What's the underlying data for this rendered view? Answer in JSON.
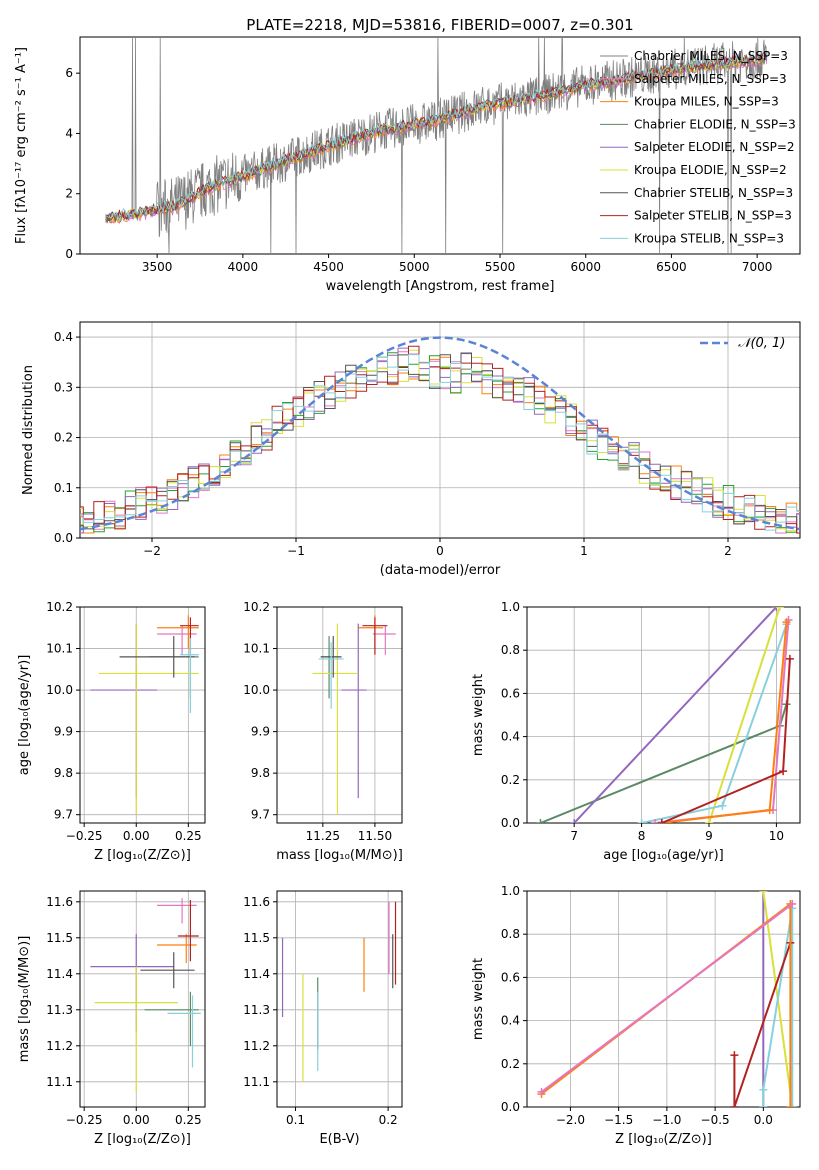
{
  "figure_title": "PLATE=2218, MJD=53816, FIBERID=0007, z=0.301",
  "series_colors": [
    "#e377c2",
    "#ff7f0e",
    "#2ca02c",
    "#9467bd",
    "#d8e03a",
    "#555555",
    "#b22222",
    "#87d0dc"
  ],
  "chart_data": [
    {
      "id": "spectrum",
      "type": "line",
      "title": "PLATE=2218, MJD=53816, FIBERID=0007, z=0.301",
      "xlabel": "wavelength [Angstrom, rest frame]",
      "ylabel": "Flux [fλ10⁻¹⁷ erg cm⁻² s⁻¹ A⁻¹]",
      "xlim": [
        3050,
        7250
      ],
      "ylim": [
        0,
        7.2
      ],
      "xticks": [
        3500,
        4000,
        4500,
        5000,
        5500,
        6000,
        6500,
        7000
      ],
      "yticks": [
        0,
        2,
        4,
        6
      ],
      "data_color": "#808080",
      "model_anchor_x": [
        3200,
        3400,
        3600,
        3800,
        4000,
        4200,
        4500,
        4800,
        5100,
        5400,
        5700,
        6000,
        6300,
        6600,
        6900,
        7050
      ],
      "model_anchor_y": [
        1.2,
        1.35,
        1.6,
        2.2,
        2.6,
        3.0,
        3.6,
        4.1,
        4.4,
        4.9,
        5.2,
        5.6,
        5.9,
        6.2,
        6.4,
        6.5
      ],
      "legend": [
        {
          "label": "Chabrier MILES, N_SSP=3",
          "color": "#808080"
        },
        {
          "label": "Salpeter MILES, N_SSP=3",
          "color": "#e377c2"
        },
        {
          "label": "Kroupa MILES, N_SSP=3",
          "color": "#ff7f0e"
        },
        {
          "label": "Chabrier ELODIE, N_SSP=3",
          "color": "#5b8a65"
        },
        {
          "label": "Salpeter ELODIE, N_SSP=2",
          "color": "#9467bd"
        },
        {
          "label": "Kroupa ELODIE, N_SSP=2",
          "color": "#d8e03a"
        },
        {
          "label": "Chabrier STELIB, N_SSP=3",
          "color": "#555555"
        },
        {
          "label": "Salpeter STELIB, N_SSP=3",
          "color": "#b22222"
        },
        {
          "label": "Kroupa STELIB, N_SSP=3",
          "color": "#87d0dc"
        }
      ],
      "legend_placement": "right"
    },
    {
      "id": "residuals",
      "type": "line",
      "xlabel": "(data-model)/error",
      "ylabel": "Normed distribution",
      "xlim": [
        -2.5,
        2.5
      ],
      "ylim": [
        0,
        0.43
      ],
      "xticks": [
        -2,
        -1,
        0,
        1,
        2
      ],
      "yticks": [
        0.0,
        0.1,
        0.2,
        0.3,
        0.4
      ],
      "grid": true,
      "bin_width": 0.1,
      "histogram_base": [
        0.03,
        0.035,
        0.04,
        0.045,
        0.05,
        0.06,
        0.07,
        0.075,
        0.08,
        0.09,
        0.1,
        0.11,
        0.12,
        0.13,
        0.15,
        0.165,
        0.18,
        0.195,
        0.21,
        0.23,
        0.24,
        0.25,
        0.265,
        0.28,
        0.29,
        0.3,
        0.31,
        0.32,
        0.33,
        0.335,
        0.34,
        0.345,
        0.35,
        0.34,
        0.33,
        0.33,
        0.32,
        0.34,
        0.33,
        0.32,
        0.31,
        0.3,
        0.29,
        0.285,
        0.27,
        0.26,
        0.25,
        0.235,
        0.22,
        0.2,
        0.19,
        0.18,
        0.17,
        0.155,
        0.14,
        0.13,
        0.12,
        0.11,
        0.1,
        0.09,
        0.085,
        0.075,
        0.07,
        0.06,
        0.055,
        0.05,
        0.045,
        0.04,
        0.035,
        0.03
      ],
      "gaussian_label": "𝒩(0, 1)",
      "gaussian_color": "#5b84d6",
      "legend_placement": "upper right"
    },
    {
      "id": "age-vs-Z",
      "type": "scatter",
      "xlabel": "Z [log₁₀(Z/Z⊙)]",
      "ylabel": "age  [log₁₀(age/yr)]",
      "xlim": [
        -0.27,
        0.33
      ],
      "ylim": [
        9.68,
        10.2
      ],
      "xticks": [
        -0.25,
        0.0,
        0.25
      ],
      "yticks": [
        9.7,
        9.8,
        9.9,
        10.0,
        10.1,
        10.2
      ],
      "grid": true,
      "points": [
        {
          "x": 0.22,
          "y": 10.135,
          "xerr": [
            0.12,
            0.07
          ],
          "yerr": [
            0.05,
            0.02
          ],
          "color": "#e377c2"
        },
        {
          "x": 0.25,
          "y": 10.15,
          "xerr": [
            0.15,
            0.05
          ],
          "yerr": [
            0.05,
            0.03
          ],
          "color": "#ff7f0e"
        },
        {
          "x": 0.26,
          "y": 10.08,
          "xerr": [
            0.2,
            0.04
          ],
          "yerr": [
            0.1,
            0.05
          ],
          "color": "#5b8a65"
        },
        {
          "x": 0.0,
          "y": 10.0,
          "xerr": [
            0.22,
            0.1
          ],
          "yerr": [
            0.26,
            0.16
          ],
          "color": "#9467bd"
        },
        {
          "x": 0.0,
          "y": 10.04,
          "xerr": [
            0.18,
            0.3
          ],
          "yerr": [
            0.34,
            0.12
          ],
          "color": "#d8e03a"
        },
        {
          "x": 0.18,
          "y": 10.08,
          "xerr": [
            0.26,
            0.1
          ],
          "yerr": [
            0.05,
            0.05
          ],
          "color": "#555555"
        },
        {
          "x": 0.26,
          "y": 10.155,
          "xerr": [
            0.05,
            0.04
          ],
          "yerr": [
            0.07,
            0.02
          ],
          "color": "#b22222"
        },
        {
          "x": 0.26,
          "y": 10.085,
          "xerr": [
            0.05,
            0.04
          ],
          "yerr": [
            0.14,
            0.04
          ],
          "color": "#87d0dc"
        }
      ]
    },
    {
      "id": "age-vs-mass",
      "type": "scatter",
      "xlabel": "mass [log₁₀(M/M⊙)]",
      "ylabel": "",
      "xlim": [
        11.03,
        11.63
      ],
      "ylim": [
        9.68,
        10.2
      ],
      "xticks": [
        11.25,
        11.5
      ],
      "yticks": [
        9.7,
        9.8,
        9.9,
        10.0,
        10.1,
        10.2
      ],
      "grid": true,
      "points": [
        {
          "x": 11.55,
          "y": 10.135,
          "xerr": [
            0.06,
            0.05
          ],
          "yerr": [
            0.05,
            0.02
          ],
          "color": "#e377c2"
        },
        {
          "x": 11.5,
          "y": 10.15,
          "xerr": [
            0.08,
            0.04
          ],
          "yerr": [
            0.05,
            0.03
          ],
          "color": "#ff7f0e"
        },
        {
          "x": 11.28,
          "y": 10.08,
          "xerr": [
            0.04,
            0.05
          ],
          "yerr": [
            0.1,
            0.05
          ],
          "color": "#5b8a65"
        },
        {
          "x": 11.42,
          "y": 10.0,
          "xerr": [
            0.08,
            0.04
          ],
          "yerr": [
            0.26,
            0.16
          ],
          "color": "#9467bd"
        },
        {
          "x": 11.32,
          "y": 10.04,
          "xerr": [
            0.12,
            0.1
          ],
          "yerr": [
            0.34,
            0.12
          ],
          "color": "#d8e03a"
        },
        {
          "x": 11.3,
          "y": 10.08,
          "xerr": [
            0.06,
            0.04
          ],
          "yerr": [
            0.05,
            0.05
          ],
          "color": "#555555"
        },
        {
          "x": 11.5,
          "y": 10.155,
          "xerr": [
            0.06,
            0.06
          ],
          "yerr": [
            0.07,
            0.02
          ],
          "color": "#b22222"
        },
        {
          "x": 11.29,
          "y": 10.075,
          "xerr": [
            0.06,
            0.06
          ],
          "yerr": [
            0.12,
            0.04
          ],
          "color": "#87d0dc"
        }
      ]
    },
    {
      "id": "massweight-vs-age",
      "type": "line",
      "xlabel": "age  [log₁₀(age/yr)]",
      "ylabel": "mass weight",
      "xlim": [
        6.3,
        10.35
      ],
      "ylim": [
        0,
        1
      ],
      "xticks": [
        7,
        8,
        9,
        10
      ],
      "yticks": [
        0.0,
        0.2,
        0.4,
        0.6,
        0.8,
        1.0
      ],
      "grid": true,
      "series": [
        {
          "color": "#5b8a65",
          "x": [
            6.5,
            10.05,
            10.15
          ],
          "y": [
            0.0,
            0.45,
            0.55
          ]
        },
        {
          "color": "#9467bd",
          "x": [
            7.0,
            10.0
          ],
          "y": [
            0.0,
            1.0
          ]
        },
        {
          "color": "#d8e03a",
          "x": [
            9.0,
            10.05
          ],
          "y": [
            0.0,
            1.0
          ]
        },
        {
          "color": "#87d0dc",
          "x": [
            8.0,
            9.2,
            10.15
          ],
          "y": [
            0.0,
            0.08,
            0.92
          ]
        },
        {
          "color": "#e377c2",
          "x": [
            8.2,
            9.95,
            10.18
          ],
          "y": [
            0.0,
            0.06,
            0.94
          ]
        },
        {
          "color": "#ff7f0e",
          "x": [
            8.3,
            9.9,
            10.15
          ],
          "y": [
            0.0,
            0.06,
            0.93
          ]
        },
        {
          "color": "#b22222",
          "x": [
            8.3,
            10.1,
            10.2
          ],
          "y": [
            0.0,
            0.24,
            0.76
          ]
        }
      ]
    },
    {
      "id": "mass-vs-Z",
      "type": "scatter",
      "xlabel": "Z [log₁₀(Z/Z⊙)]",
      "ylabel": "mass [log₁₀(M/M⊙)]",
      "xlim": [
        -0.27,
        0.33
      ],
      "ylim": [
        11.03,
        11.63
      ],
      "xticks": [
        -0.25,
        0.0,
        0.25
      ],
      "yticks": [
        11.1,
        11.2,
        11.3,
        11.4,
        11.5,
        11.6
      ],
      "grid": true,
      "points": [
        {
          "x": 0.22,
          "y": 11.59,
          "xerr": [
            0.12,
            0.07
          ],
          "yerr": [
            0.05,
            0.02
          ],
          "color": "#e377c2"
        },
        {
          "x": 0.24,
          "y": 11.48,
          "xerr": [
            0.14,
            0.05
          ],
          "yerr": [
            0.05,
            0.03
          ],
          "color": "#ff7f0e"
        },
        {
          "x": 0.26,
          "y": 11.3,
          "xerr": [
            0.22,
            0.04
          ],
          "yerr": [
            0.1,
            0.05
          ],
          "color": "#5b8a65"
        },
        {
          "x": 0.0,
          "y": 11.42,
          "xerr": [
            0.22,
            0.18
          ],
          "yerr": [
            0.18,
            0.09
          ],
          "color": "#9467bd"
        },
        {
          "x": 0.0,
          "y": 11.32,
          "xerr": [
            0.2,
            0.2
          ],
          "yerr": [
            0.25,
            0.1
          ],
          "color": "#d8e03a"
        },
        {
          "x": 0.18,
          "y": 11.41,
          "xerr": [
            0.16,
            0.1
          ],
          "yerr": [
            0.05,
            0.05
          ],
          "color": "#555555"
        },
        {
          "x": 0.26,
          "y": 11.505,
          "xerr": [
            0.06,
            0.04
          ],
          "yerr": [
            0.07,
            0.1
          ],
          "color": "#b22222"
        },
        {
          "x": 0.27,
          "y": 11.29,
          "xerr": [
            0.12,
            0.04
          ],
          "yerr": [
            0.15,
            0.05
          ],
          "color": "#87d0dc"
        }
      ]
    },
    {
      "id": "mass-vs-EBV",
      "type": "scatter",
      "xlabel": "E(B-V)",
      "ylabel": "",
      "xlim": [
        0.08,
        0.215
      ],
      "ylim": [
        11.03,
        11.63
      ],
      "xticks": [
        0.1,
        0.2
      ],
      "yticks": [
        11.1,
        11.2,
        11.3,
        11.4,
        11.5,
        11.6
      ],
      "grid": true,
      "points": [
        {
          "x": 0.201,
          "y": 11.5,
          "yerr": [
            0.1,
            0.1
          ],
          "color": "#e377c2"
        },
        {
          "x": 0.174,
          "y": 11.42,
          "yerr": [
            0.07,
            0.08
          ],
          "color": "#ff7f0e"
        },
        {
          "x": 0.124,
          "y": 11.29,
          "yerr": [
            0.1,
            0.1
          ],
          "color": "#5b8a65"
        },
        {
          "x": 0.086,
          "y": 11.42,
          "yerr": [
            0.14,
            0.08
          ],
          "color": "#9467bd"
        },
        {
          "x": 0.108,
          "y": 11.3,
          "yerr": [
            0.2,
            0.1
          ],
          "color": "#d8e03a"
        },
        {
          "x": 0.205,
          "y": 11.41,
          "yerr": [
            0.05,
            0.1
          ],
          "color": "#555555"
        },
        {
          "x": 0.208,
          "y": 11.5,
          "yerr": [
            0.13,
            0.1
          ],
          "color": "#b22222"
        },
        {
          "x": 0.124,
          "y": 11.25,
          "yerr": [
            0.12,
            0.1
          ],
          "color": "#87d0dc"
        }
      ]
    },
    {
      "id": "massweight-vs-Z",
      "type": "line",
      "xlabel": "Z [log₁₀(Z/Z⊙)]",
      "ylabel": "mass weight",
      "xlim": [
        -2.45,
        0.38
      ],
      "ylim": [
        0,
        1
      ],
      "xticks": [
        -2.0,
        -1.5,
        -1.0,
        -0.5,
        0.0
      ],
      "yticks": [
        0.0,
        0.2,
        0.4,
        0.6,
        0.8,
        1.0
      ],
      "grid": true,
      "series": [
        {
          "color": "#9467bd",
          "x": [
            0.0,
            0.0
          ],
          "y": [
            0.0,
            1.0
          ]
        },
        {
          "color": "#d8e03a",
          "x": [
            0.0,
            0.3
          ],
          "y": [
            1.0,
            0.0
          ]
        },
        {
          "color": "#87d0dc",
          "x": [
            0.0,
            0.0,
            0.3,
            0.3
          ],
          "y": [
            0.0,
            0.08,
            0.92,
            0.0
          ]
        },
        {
          "color": "#b22222",
          "x": [
            -0.3,
            -0.3,
            -0.3,
            0.28
          ],
          "y": [
            0.24,
            0.0,
            0.0,
            0.76
          ]
        },
        {
          "color": "#ff7f0e",
          "x": [
            -2.3,
            0.28,
            0.28
          ],
          "y": [
            0.06,
            0.94,
            0.0
          ]
        },
        {
          "color": "#e377c2",
          "x": [
            -2.3,
            0.3
          ],
          "y": [
            0.07,
            0.94
          ]
        }
      ]
    }
  ]
}
